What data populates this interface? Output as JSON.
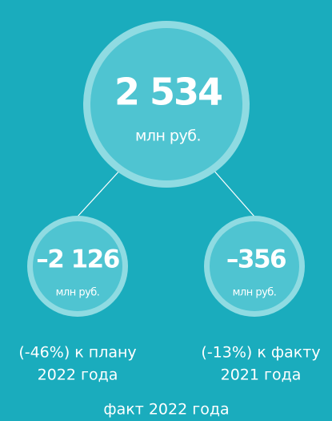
{
  "total": {
    "value": "2 534",
    "unit": "млн руб."
  },
  "nodes": [
    {
      "value": "–2 126",
      "unit": "млн руб.",
      "caption": [
        "(-46%) к плану",
        "2022 года"
      ]
    },
    {
      "value": "–356",
      "unit": "млн руб.",
      "caption": [
        "(-13%) к факту",
        "2021 года"
      ]
    }
  ],
  "footer": "факт 2022 года"
}
